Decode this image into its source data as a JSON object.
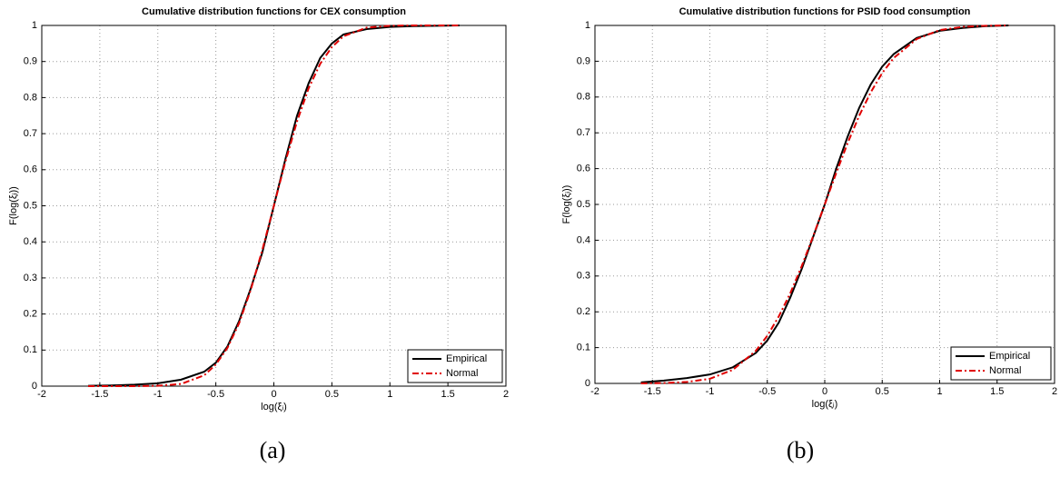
{
  "chart_data": [
    {
      "type": "line",
      "title": "Cumulative distribution functions for CEX consumption",
      "xlabel": "log(ξᵢ)",
      "ylabel": "F(log(ξᵢ))",
      "caption": "(a)",
      "x": [
        -1.6,
        -1.4,
        -1.2,
        -1.0,
        -0.8,
        -0.6,
        -0.5,
        -0.4,
        -0.3,
        -0.2,
        -0.1,
        0,
        0.1,
        0.2,
        0.3,
        0.4,
        0.5,
        0.6,
        0.8,
        1.0,
        1.2,
        1.4,
        1.6
      ],
      "series": [
        {
          "name": "Empirical",
          "color": "#000000",
          "linestyle": "solid",
          "values": [
            0.001,
            0.002,
            0.004,
            0.008,
            0.018,
            0.04,
            0.065,
            0.11,
            0.18,
            0.27,
            0.37,
            0.5,
            0.63,
            0.75,
            0.84,
            0.91,
            0.95,
            0.975,
            0.99,
            0.996,
            0.998,
            0.999,
            1
          ]
        },
        {
          "name": "Normal",
          "color": "#e00000",
          "linestyle": "dashdot",
          "values": [
            0,
            0,
            0,
            0.001,
            0.006,
            0.03,
            0.06,
            0.106,
            0.174,
            0.266,
            0.377,
            0.5,
            0.623,
            0.734,
            0.826,
            0.894,
            0.94,
            0.97,
            0.994,
            0.999,
            1,
            1,
            1
          ]
        }
      ],
      "xlim": [
        -2,
        2
      ],
      "xticks": [
        -2,
        -1.5,
        -1,
        -0.5,
        0,
        0.5,
        1,
        1.5,
        2
      ],
      "ylim": [
        0,
        1
      ],
      "yticks": [
        0,
        0.1,
        0.2,
        0.3,
        0.4,
        0.5,
        0.6,
        0.7,
        0.8,
        0.9,
        1
      ],
      "grid": true,
      "legend": "lower right"
    },
    {
      "type": "line",
      "title": "Cumulative distribution functions for PSID food consumption",
      "xlabel": "log(ξᵢ)",
      "ylabel": "F(log(ξᵢ))",
      "caption": "(b)",
      "x": [
        -1.6,
        -1.4,
        -1.2,
        -1.0,
        -0.8,
        -0.6,
        -0.5,
        -0.4,
        -0.3,
        -0.2,
        -0.1,
        0,
        0.1,
        0.2,
        0.3,
        0.4,
        0.5,
        0.6,
        0.8,
        1.0,
        1.2,
        1.4,
        1.6
      ],
      "series": [
        {
          "name": "Empirical",
          "color": "#000000",
          "linestyle": "solid",
          "values": [
            0.003,
            0.008,
            0.015,
            0.025,
            0.045,
            0.085,
            0.12,
            0.17,
            0.24,
            0.32,
            0.41,
            0.5,
            0.6,
            0.69,
            0.77,
            0.835,
            0.885,
            0.92,
            0.965,
            0.985,
            0.993,
            0.998,
            1
          ]
        },
        {
          "name": "Normal",
          "color": "#e00000",
          "linestyle": "dashdot",
          "values": [
            0.0002,
            0.001,
            0.004,
            0.013,
            0.038,
            0.091,
            0.133,
            0.187,
            0.252,
            0.328,
            0.412,
            0.5,
            0.588,
            0.672,
            0.748,
            0.813,
            0.867,
            0.909,
            0.962,
            0.987,
            0.996,
            0.999,
            1
          ]
        }
      ],
      "xlim": [
        -2,
        2
      ],
      "xticks": [
        -2,
        -1.5,
        -1,
        -0.5,
        0,
        0.5,
        1,
        1.5,
        2
      ],
      "ylim": [
        0,
        1
      ],
      "yticks": [
        0,
        0.1,
        0.2,
        0.3,
        0.4,
        0.5,
        0.6,
        0.7,
        0.8,
        0.9,
        1
      ],
      "grid": true,
      "legend": "lower right"
    }
  ]
}
